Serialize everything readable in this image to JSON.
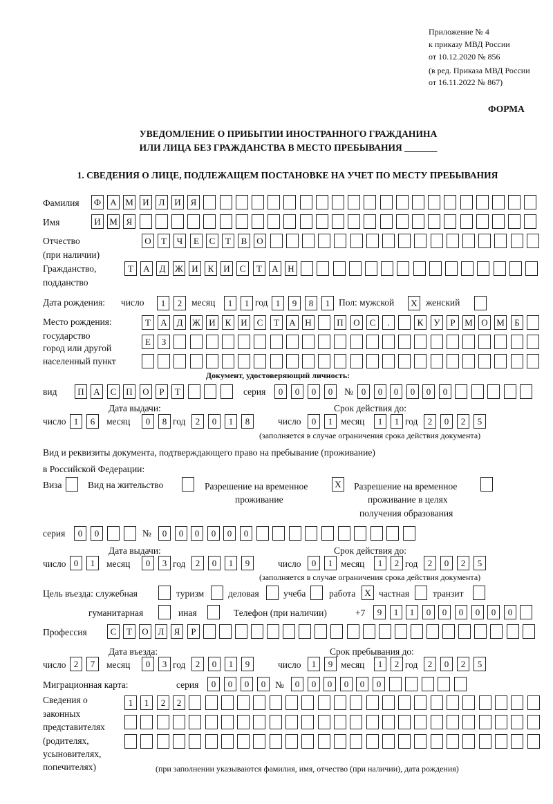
{
  "header": {
    "line1": "Приложение № 4",
    "line2": "к приказу МВД России",
    "line3": "от 10.12.2020 № 856",
    "line4": "(в ред. Приказа МВД России",
    "line5": "от 16.11.2022 № 867)",
    "forma": "ФОРМА",
    "title1": "УВЕДОМЛЕНИЕ О ПРИБЫТИИ ИНОСТРАННОГО ГРАЖДАНИНА",
    "title2": "ИЛИ ЛИЦА БЕЗ ГРАЖДАНСТВА В МЕСТО ПРЕБЫВАНИЯ _______",
    "section1": "1. СВЕДЕНИЯ О ЛИЦЕ, ПОДЛЕЖАЩЕМ ПОСТАНОВКЕ НА УЧЕТ ПО МЕСТУ ПРЕБЫВАНИЯ"
  },
  "labels": {
    "surname": "Фамилия",
    "name": "Имя",
    "patronymic": "Отчество",
    "patronymic_note": "(при наличии)",
    "citizenship": "Гражданство,",
    "citizenship2": "подданство",
    "birth_date": "Дата рождения:",
    "day": "число",
    "month": "месяц",
    "year": "год",
    "sex": "Пол: мужской",
    "female": "женский",
    "birth_place": "Место рождения:",
    "state": "государство",
    "city": "город или другой",
    "settlement": "населенный пункт",
    "id_doc": "Документ, удостоверяющий личность:",
    "kind": "вид",
    "series": "серия",
    "number": "№",
    "issue_date": "Дата выдачи:",
    "valid_until": "Срок действия до:",
    "valid_note": "(заполняется в случае ограничения срока действия документа)",
    "right_doc1": "Вид и реквизиты документа, подтверждающего право на пребывание (проживание)",
    "right_doc2": "в Российской Федерации:",
    "visa": "Виза",
    "residence": "Вид на жительство",
    "trp1": "Разрешение на временное",
    "trp2": "проживание",
    "trpe1": "Разрешение на временное",
    "trpe2": "проживание в целях",
    "trpe3": "получения образования",
    "purpose": "Цель въезда: служебная",
    "tourism": "туризм",
    "business": "деловая",
    "study": "учеба",
    "work": "работа",
    "private": "частная",
    "transit": "транзит",
    "humanitarian": "гуманитарная",
    "other": "иная",
    "phone": "Телефон (при наличии)",
    "phone_prefix": "+7",
    "profession": "Профессия",
    "entry_date": "Дата въезда:",
    "stay_until": "Срок пребывания до:",
    "migration_card": "Миграционная карта:",
    "reps1": "Сведения о",
    "reps2": "законных",
    "reps3": "представителях",
    "reps4": "(родителях,",
    "reps5": "усыновителях,",
    "reps6": "попечителях)",
    "reps_note": "(при заполнении указываются фамилия, имя, отчество (при наличии), дата рождения)"
  },
  "values": {
    "surname": "ФАМИЛИЯ",
    "name": "ИМЯ",
    "patronymic": "ОТЧЕСТВО",
    "citizenship": "ТАДЖИКИСТАН",
    "birth_day": "12",
    "birth_month": "11",
    "birth_year": "1981",
    "sex_male": "X",
    "sex_female": "",
    "birth_place1": "ТАДЖИКИСТАН ПОС. КУРМОМБ",
    "birth_place2": "ЕЗ",
    "birth_place3": "",
    "id_kind": "ПАСПОРТ",
    "id_series": "0000",
    "id_number": "000000",
    "id_issue_day": "16",
    "id_issue_month": "08",
    "id_issue_year": "2018",
    "id_valid_day": "01",
    "id_valid_month": "11",
    "id_valid_year": "2025",
    "visa": "",
    "residence": "",
    "trp": "X",
    "trpe": "",
    "rd_series": "00",
    "rd_number": "000000",
    "rd_issue_day": "01",
    "rd_issue_month": "03",
    "rd_issue_year": "2019",
    "rd_valid_day": "01",
    "rd_valid_month": "12",
    "rd_valid_year": "2025",
    "p_service": "",
    "p_tourism": "",
    "p_business": "",
    "p_study": "",
    "p_work": "X",
    "p_private": "",
    "p_transit": "",
    "p_humanitarian": "",
    "p_other": "",
    "phone": "911000000",
    "profession": "СТОЛЯР",
    "entry_day": "27",
    "entry_month": "03",
    "entry_year": "2019",
    "stay_day": "19",
    "stay_month": "12",
    "stay_year": "2025",
    "mc_series": "0000",
    "mc_number": "000000",
    "reps1": "1122",
    "reps2": "",
    "reps3": ""
  }
}
